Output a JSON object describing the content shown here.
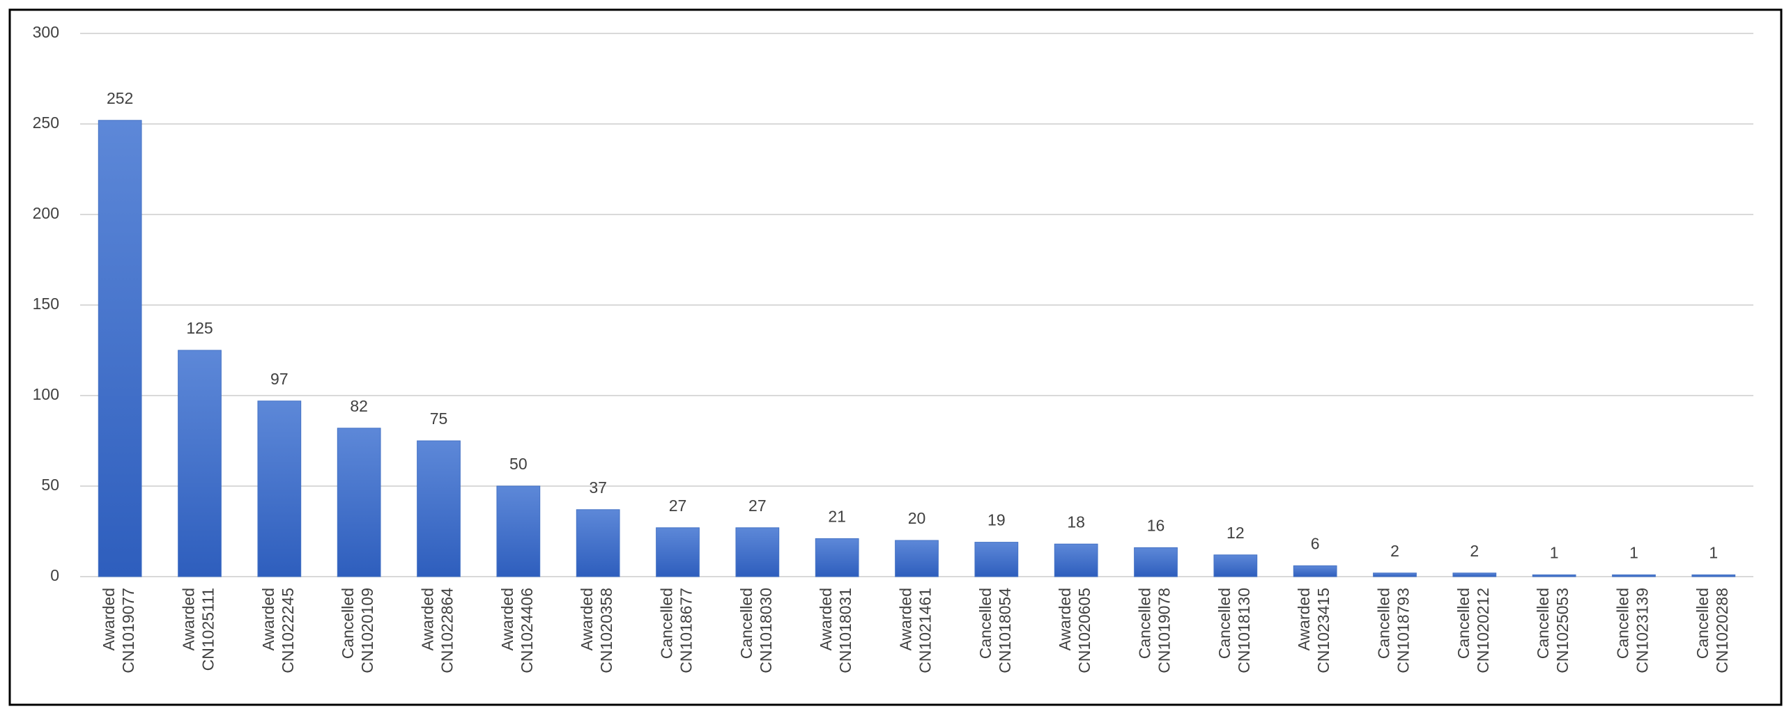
{
  "chart_data": {
    "type": "bar",
    "categories": [
      [
        "Awarded",
        "CN1019077"
      ],
      [
        "Awarded",
        "CN1025111"
      ],
      [
        "Awarded",
        "CN1022245"
      ],
      [
        "Cancelled",
        "CN1020109"
      ],
      [
        "Awarded",
        "CN1022864"
      ],
      [
        "Awarded",
        "CN1024406"
      ],
      [
        "Awarded",
        "CN1020358"
      ],
      [
        "Cancelled",
        "CN1018677"
      ],
      [
        "Cancelled",
        "CN1018030"
      ],
      [
        "Awarded",
        "CN1018031"
      ],
      [
        "Awarded",
        "CN1021461"
      ],
      [
        "Cancelled",
        "CN1018054"
      ],
      [
        "Awarded",
        "CN1020605"
      ],
      [
        "Cancelled",
        "CN1019078"
      ],
      [
        "Cancelled",
        "CN1018130"
      ],
      [
        "Awarded",
        "CN1023415"
      ],
      [
        "Cancelled",
        "CN1018793"
      ],
      [
        "Cancelled",
        "CN1020212"
      ],
      [
        "Cancelled",
        "CN1025053"
      ],
      [
        "Cancelled",
        "CN1023139"
      ],
      [
        "Cancelled",
        "CN1020288"
      ]
    ],
    "values": [
      252,
      125,
      97,
      82,
      75,
      50,
      37,
      27,
      27,
      21,
      20,
      19,
      18,
      16,
      12,
      6,
      2,
      2,
      1,
      1,
      1
    ],
    "color": "#4472c4",
    "ylim": [
      0,
      300
    ],
    "yticks": [
      0,
      50,
      100,
      150,
      200,
      250,
      300
    ],
    "grid": true
  }
}
